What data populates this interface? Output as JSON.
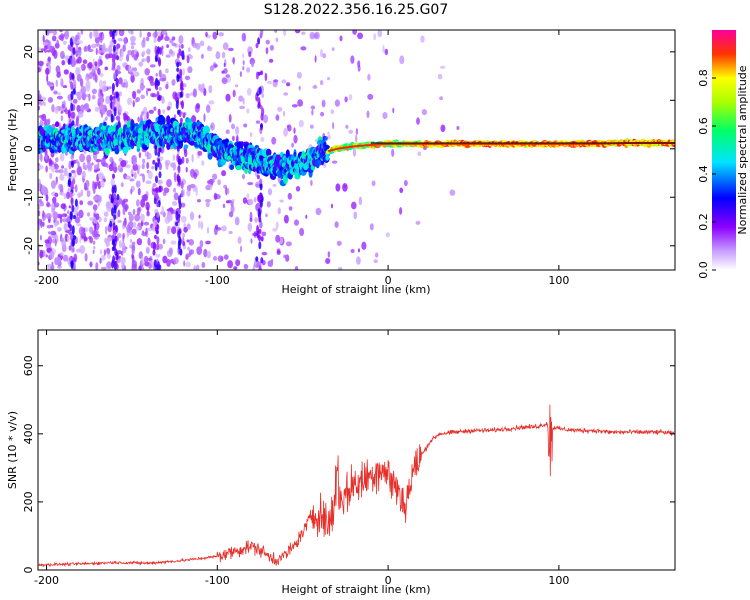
{
  "chart_data": [
    {
      "type": "heatmap",
      "title": "S128.2022.356.16.25.G07",
      "xlabel": "Height of straight line (km)",
      "ylabel": "Frequency (Hz)",
      "xlim": [
        -205,
        168
      ],
      "ylim": [
        -25,
        24.5
      ],
      "x_ticks": [
        -200,
        -100,
        0,
        100
      ],
      "y_ticks": [
        -20,
        -10,
        0,
        10,
        20
      ],
      "colorbar": {
        "label": "Normalized spectral amplitude",
        "ticks": [
          0.0,
          0.2,
          0.4,
          0.6,
          0.8
        ],
        "range": [
          0,
          1
        ],
        "colormap": [
          "#ffffff",
          "#8800ff",
          "#0000ff",
          "#00ffff",
          "#00ff00",
          "#ffff00",
          "#ff0000",
          "#ff00aa"
        ]
      },
      "ridge": {
        "description_points_x": [
          -200,
          -180,
          -160,
          -140,
          -120,
          -110,
          -100,
          -90,
          -80,
          -70,
          -60,
          -50,
          -45,
          -40,
          -35,
          -30,
          -20,
          -10,
          0,
          10,
          20,
          40,
          60,
          80,
          90,
          100,
          120,
          140,
          168
        ],
        "description_points_y": [
          2,
          2,
          2,
          3,
          3.5,
          3,
          0,
          -1,
          -2,
          -3,
          -4,
          -3,
          -2,
          -1,
          -0.5,
          0,
          0.5,
          0.8,
          1,
          1,
          1,
          1,
          1,
          1,
          1,
          1,
          1,
          1.2,
          1.2
        ]
      },
      "reference_line_y": 1.2
    },
    {
      "type": "line",
      "title": "",
      "xlabel": "Height of straight line (km)",
      "ylabel": "SNR (10 * v/v)",
      "xlim": [
        -205,
        168
      ],
      "ylim": [
        0,
        705
      ],
      "x_ticks": [
        -200,
        -100,
        0,
        100
      ],
      "y_ticks": [
        0,
        200,
        400,
        600
      ],
      "color": "#e8302a",
      "series": [
        {
          "x": [
            -205,
            -180,
            -160,
            -140,
            -120,
            -100,
            -90,
            -80,
            -75,
            -70,
            -65,
            -60,
            -55,
            -50,
            -45,
            -40,
            -35,
            -30,
            -25,
            -20,
            -15,
            -10,
            -5,
            0,
            5,
            10,
            15,
            20,
            25,
            30,
            40,
            50,
            60,
            70,
            80,
            85,
            90,
            93,
            95,
            97,
            100,
            110,
            120,
            130,
            140,
            150,
            160,
            168
          ],
          "y": [
            15,
            18,
            22,
            20,
            28,
            40,
            55,
            70,
            60,
            40,
            30,
            45,
            70,
            110,
            160,
            170,
            130,
            210,
            220,
            250,
            260,
            280,
            300,
            280,
            240,
            190,
            290,
            340,
            380,
            400,
            405,
            410,
            410,
            415,
            420,
            420,
            425,
            430,
            400,
            420,
            415,
            410,
            410,
            405,
            405,
            405,
            405,
            400
          ]
        }
      ]
    }
  ]
}
